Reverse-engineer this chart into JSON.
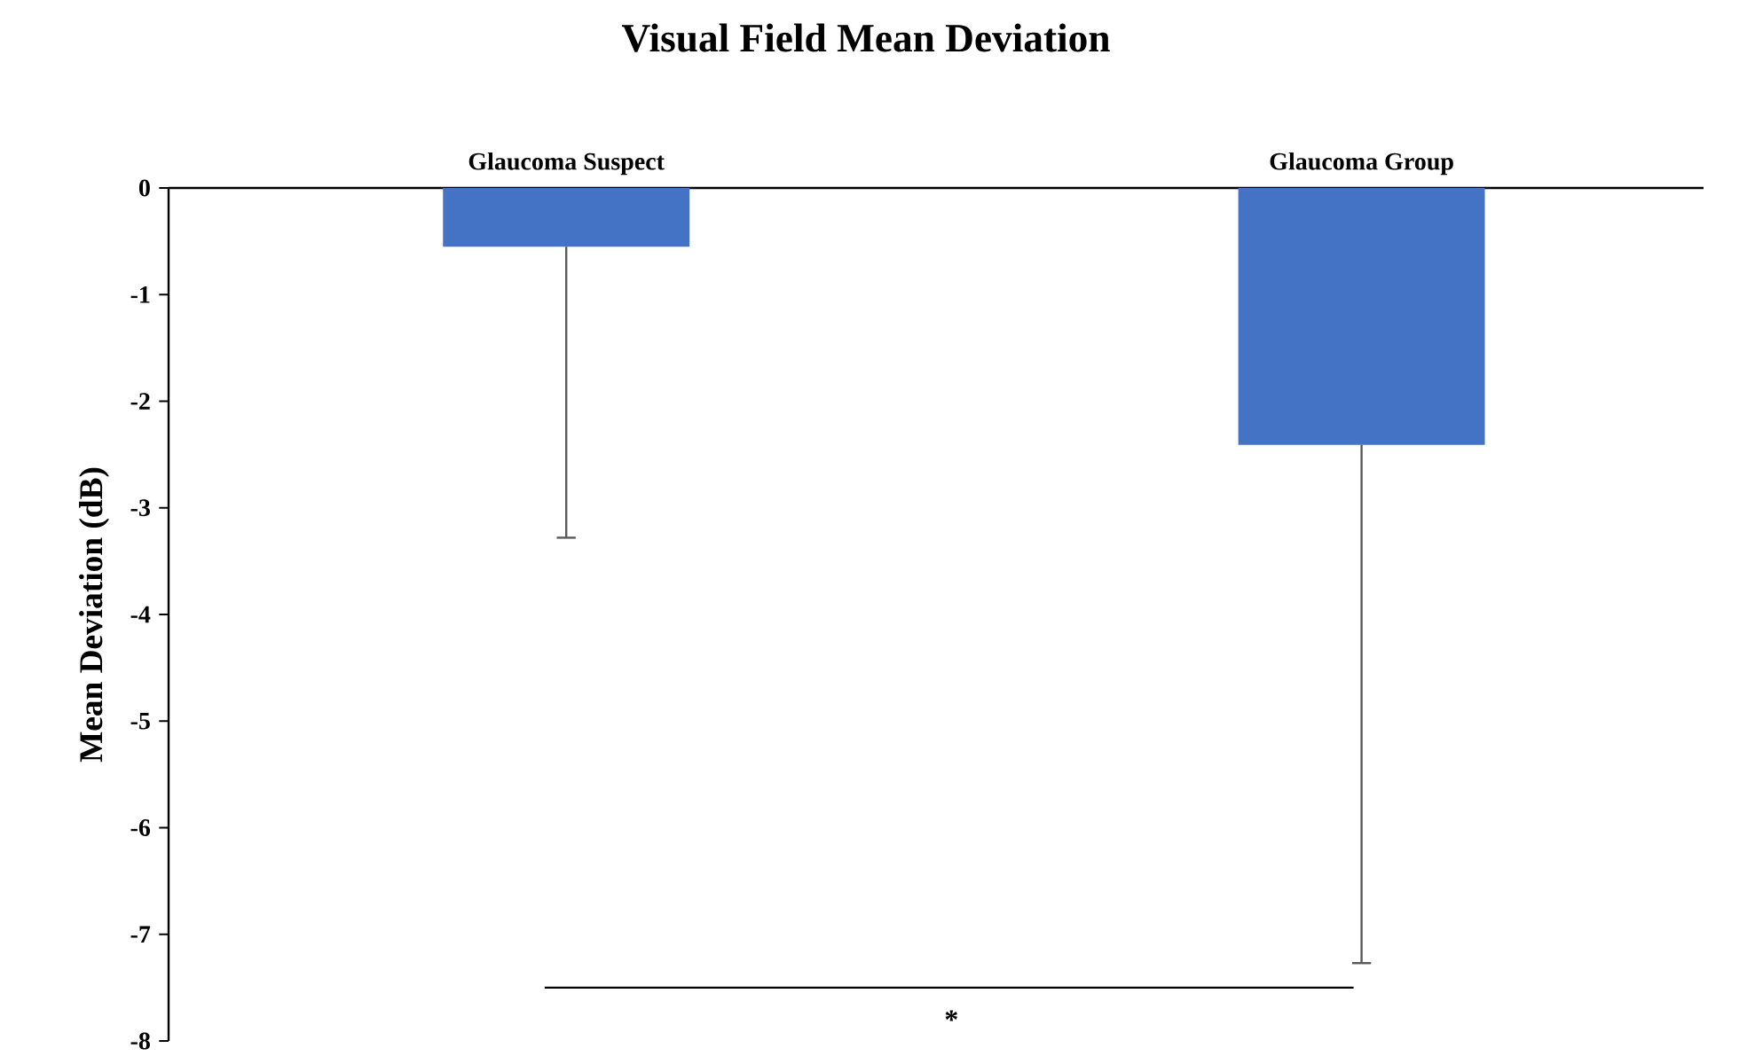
{
  "chart_data": {
    "type": "bar",
    "title": "Visual Field Mean Deviation",
    "ylabel": "Mean Deviation (dB)",
    "categories": [
      "Glaucoma Suspect",
      "Glaucoma Group"
    ],
    "values": [
      -0.55,
      -2.41
    ],
    "errors": [
      [
        -3.28,
        -0.55
      ],
      [
        -7.27,
        -2.41
      ]
    ],
    "color": "#4472c4",
    "ylim": [
      -8,
      0
    ],
    "yticks": [
      -8,
      -7,
      -6,
      -5,
      -4,
      -3,
      -2,
      -1,
      0
    ],
    "annotations": [
      "*"
    ]
  }
}
